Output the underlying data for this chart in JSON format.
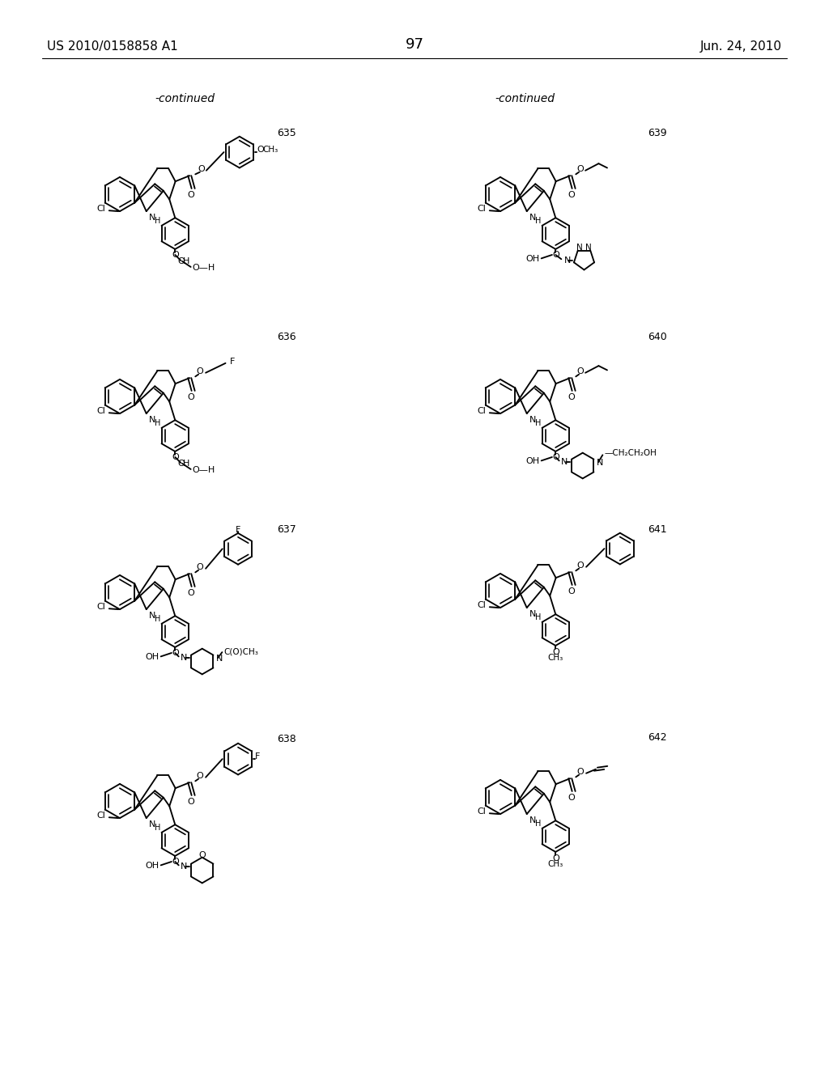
{
  "page_width": 10.24,
  "page_height": 13.2,
  "dpi": 100,
  "background_color": "#ffffff",
  "header_left": "US 2010/0158858 A1",
  "header_right": "Jun. 24, 2010",
  "page_number": "97",
  "text_color": "#000000"
}
